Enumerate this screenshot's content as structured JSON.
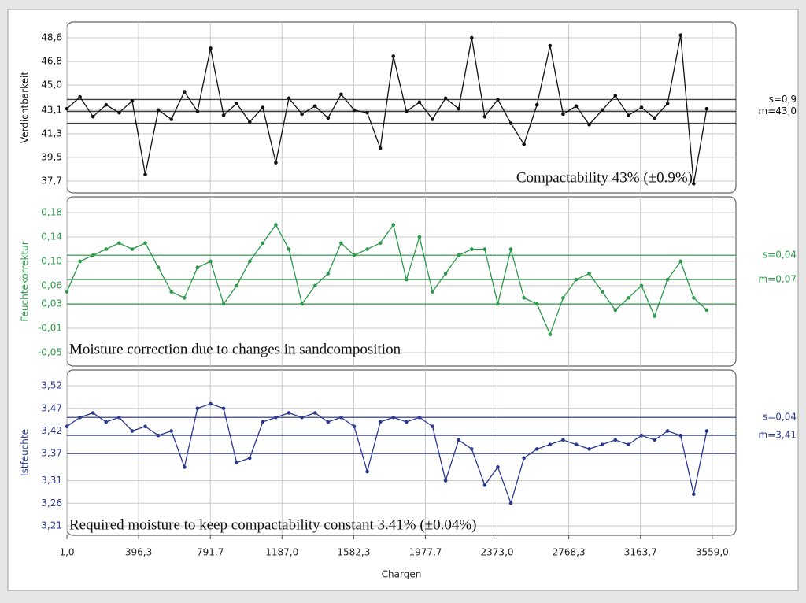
{
  "chart_data": [
    {
      "type": "line",
      "ylabel": "Verdichtbarkeit",
      "color": "#111111",
      "annotation": "Compactability 43% (±0.9%)",
      "reference": {
        "m": 43.0,
        "s": 0.9,
        "m_label": "m=43,0",
        "s_label": "s=0,9"
      },
      "ylim": [
        36.8,
        49.8
      ],
      "yticks": [
        {
          "value": 48.6,
          "label": "48,6"
        },
        {
          "value": 46.8,
          "label": "46,8"
        },
        {
          "value": 45.0,
          "label": "45,0"
        },
        {
          "value": 43.1,
          "label": "43,1"
        },
        {
          "value": 41.3,
          "label": "41,3"
        },
        {
          "value": 39.5,
          "label": "39,5"
        },
        {
          "value": 37.7,
          "label": "37,7"
        }
      ],
      "x": [
        1,
        73,
        145,
        217,
        289,
        361,
        433,
        505,
        577,
        649,
        721,
        793,
        865,
        937,
        1009,
        1081,
        1153,
        1225,
        1297,
        1369,
        1441,
        1513,
        1585,
        1657,
        1729,
        1801,
        1873,
        1945,
        2017,
        2089,
        2161,
        2233,
        2305,
        2377,
        2449,
        2521,
        2593,
        2665,
        2737,
        2809,
        2881,
        2953,
        3025,
        3097,
        3169,
        3241,
        3313,
        3385,
        3457,
        3529
      ],
      "values": [
        43.2,
        44.1,
        42.6,
        43.5,
        42.9,
        43.8,
        38.2,
        43.1,
        42.4,
        44.5,
        43.0,
        47.8,
        42.7,
        43.6,
        42.2,
        43.3,
        39.1,
        44.0,
        42.8,
        43.4,
        42.5,
        44.3,
        43.1,
        42.9,
        40.2,
        47.2,
        43.0,
        43.7,
        42.4,
        44.0,
        43.2,
        48.6,
        42.6,
        43.9,
        42.1,
        40.5,
        43.5,
        48.0,
        42.8,
        43.4,
        42.0,
        43.1,
        44.2,
        42.7,
        43.3,
        42.5,
        43.6,
        48.8,
        37.5,
        43.2
      ]
    },
    {
      "type": "line",
      "ylabel": "Feuchtekorrektur",
      "color": "#2a9a4a",
      "annotation": "Moisture correction due to changes in sandcomposition",
      "reference": {
        "m": 0.07,
        "s": 0.04,
        "m_label": "m=0,07",
        "s_label": "s=0,04"
      },
      "ylim": [
        -0.072,
        0.206
      ],
      "yticks": [
        {
          "value": 0.18,
          "label": "0,18"
        },
        {
          "value": 0.14,
          "label": "0,14"
        },
        {
          "value": 0.1,
          "label": "0,10"
        },
        {
          "value": 0.06,
          "label": "0,06"
        },
        {
          "value": 0.03,
          "label": "0,03"
        },
        {
          "value": -0.01,
          "label": "-0,01"
        },
        {
          "value": -0.05,
          "label": "-0,05"
        }
      ],
      "x": [
        1,
        73,
        145,
        217,
        289,
        361,
        433,
        505,
        577,
        649,
        721,
        793,
        865,
        937,
        1009,
        1081,
        1153,
        1225,
        1297,
        1369,
        1441,
        1513,
        1585,
        1657,
        1729,
        1801,
        1873,
        1945,
        2017,
        2089,
        2161,
        2233,
        2305,
        2377,
        2449,
        2521,
        2593,
        2665,
        2737,
        2809,
        2881,
        2953,
        3025,
        3097,
        3169,
        3241,
        3313,
        3385,
        3457,
        3529
      ],
      "values": [
        0.05,
        0.1,
        0.11,
        0.12,
        0.13,
        0.12,
        0.13,
        0.09,
        0.05,
        0.04,
        0.09,
        0.1,
        0.03,
        0.06,
        0.1,
        0.13,
        0.16,
        0.12,
        0.03,
        0.06,
        0.08,
        0.13,
        0.11,
        0.12,
        0.13,
        0.16,
        0.07,
        0.14,
        0.05,
        0.08,
        0.11,
        0.12,
        0.12,
        0.03,
        0.12,
        0.04,
        0.03,
        -0.02,
        0.04,
        0.07,
        0.08,
        0.05,
        0.02,
        0.04,
        0.06,
        0.01,
        0.07,
        0.1,
        0.04,
        0.02
      ]
    },
    {
      "type": "line",
      "ylabel": "Istfeuchte",
      "color": "#2b3990",
      "annotation": "Required moisture to keep compactability constant 3.41% (±0.04%)",
      "reference": {
        "m": 3.41,
        "s": 0.04,
        "m_label": "m=3,41",
        "s_label": "s=0,04"
      },
      "ylim": [
        3.189,
        3.555
      ],
      "yticks": [
        {
          "value": 3.52,
          "label": "3,52"
        },
        {
          "value": 3.47,
          "label": "3,47"
        },
        {
          "value": 3.42,
          "label": "3,42"
        },
        {
          "value": 3.37,
          "label": "3,37"
        },
        {
          "value": 3.31,
          "label": "3,31"
        },
        {
          "value": 3.26,
          "label": "3,26"
        },
        {
          "value": 3.21,
          "label": "3,21"
        }
      ],
      "xlabel": "Chargen",
      "xlim": [
        1,
        3690
      ],
      "xticks": [
        {
          "value": 1.0,
          "label": "1,0"
        },
        {
          "value": 396.3,
          "label": "396,3"
        },
        {
          "value": 791.7,
          "label": "791,7"
        },
        {
          "value": 1187.0,
          "label": "1187,0"
        },
        {
          "value": 1582.3,
          "label": "1582,3"
        },
        {
          "value": 1977.7,
          "label": "1977,7"
        },
        {
          "value": 2373.0,
          "label": "2373,0"
        },
        {
          "value": 2768.3,
          "label": "2768,3"
        },
        {
          "value": 3163.7,
          "label": "3163,7"
        },
        {
          "value": 3559.0,
          "label": "3559,0"
        }
      ],
      "x": [
        1,
        73,
        145,
        217,
        289,
        361,
        433,
        505,
        577,
        649,
        721,
        793,
        865,
        937,
        1009,
        1081,
        1153,
        1225,
        1297,
        1369,
        1441,
        1513,
        1585,
        1657,
        1729,
        1801,
        1873,
        1945,
        2017,
        2089,
        2161,
        2233,
        2305,
        2377,
        2449,
        2521,
        2593,
        2665,
        2737,
        2809,
        2881,
        2953,
        3025,
        3097,
        3169,
        3241,
        3313,
        3385,
        3457,
        3529
      ],
      "values": [
        3.43,
        3.45,
        3.46,
        3.44,
        3.45,
        3.42,
        3.43,
        3.41,
        3.42,
        3.34,
        3.47,
        3.48,
        3.47,
        3.35,
        3.36,
        3.44,
        3.45,
        3.46,
        3.45,
        3.46,
        3.44,
        3.45,
        3.43,
        3.33,
        3.44,
        3.45,
        3.44,
        3.45,
        3.43,
        3.31,
        3.4,
        3.38,
        3.3,
        3.34,
        3.26,
        3.36,
        3.38,
        3.39,
        3.4,
        3.39,
        3.38,
        3.39,
        3.4,
        3.39,
        3.41,
        3.4,
        3.42,
        3.41,
        3.28,
        3.42
      ]
    }
  ]
}
